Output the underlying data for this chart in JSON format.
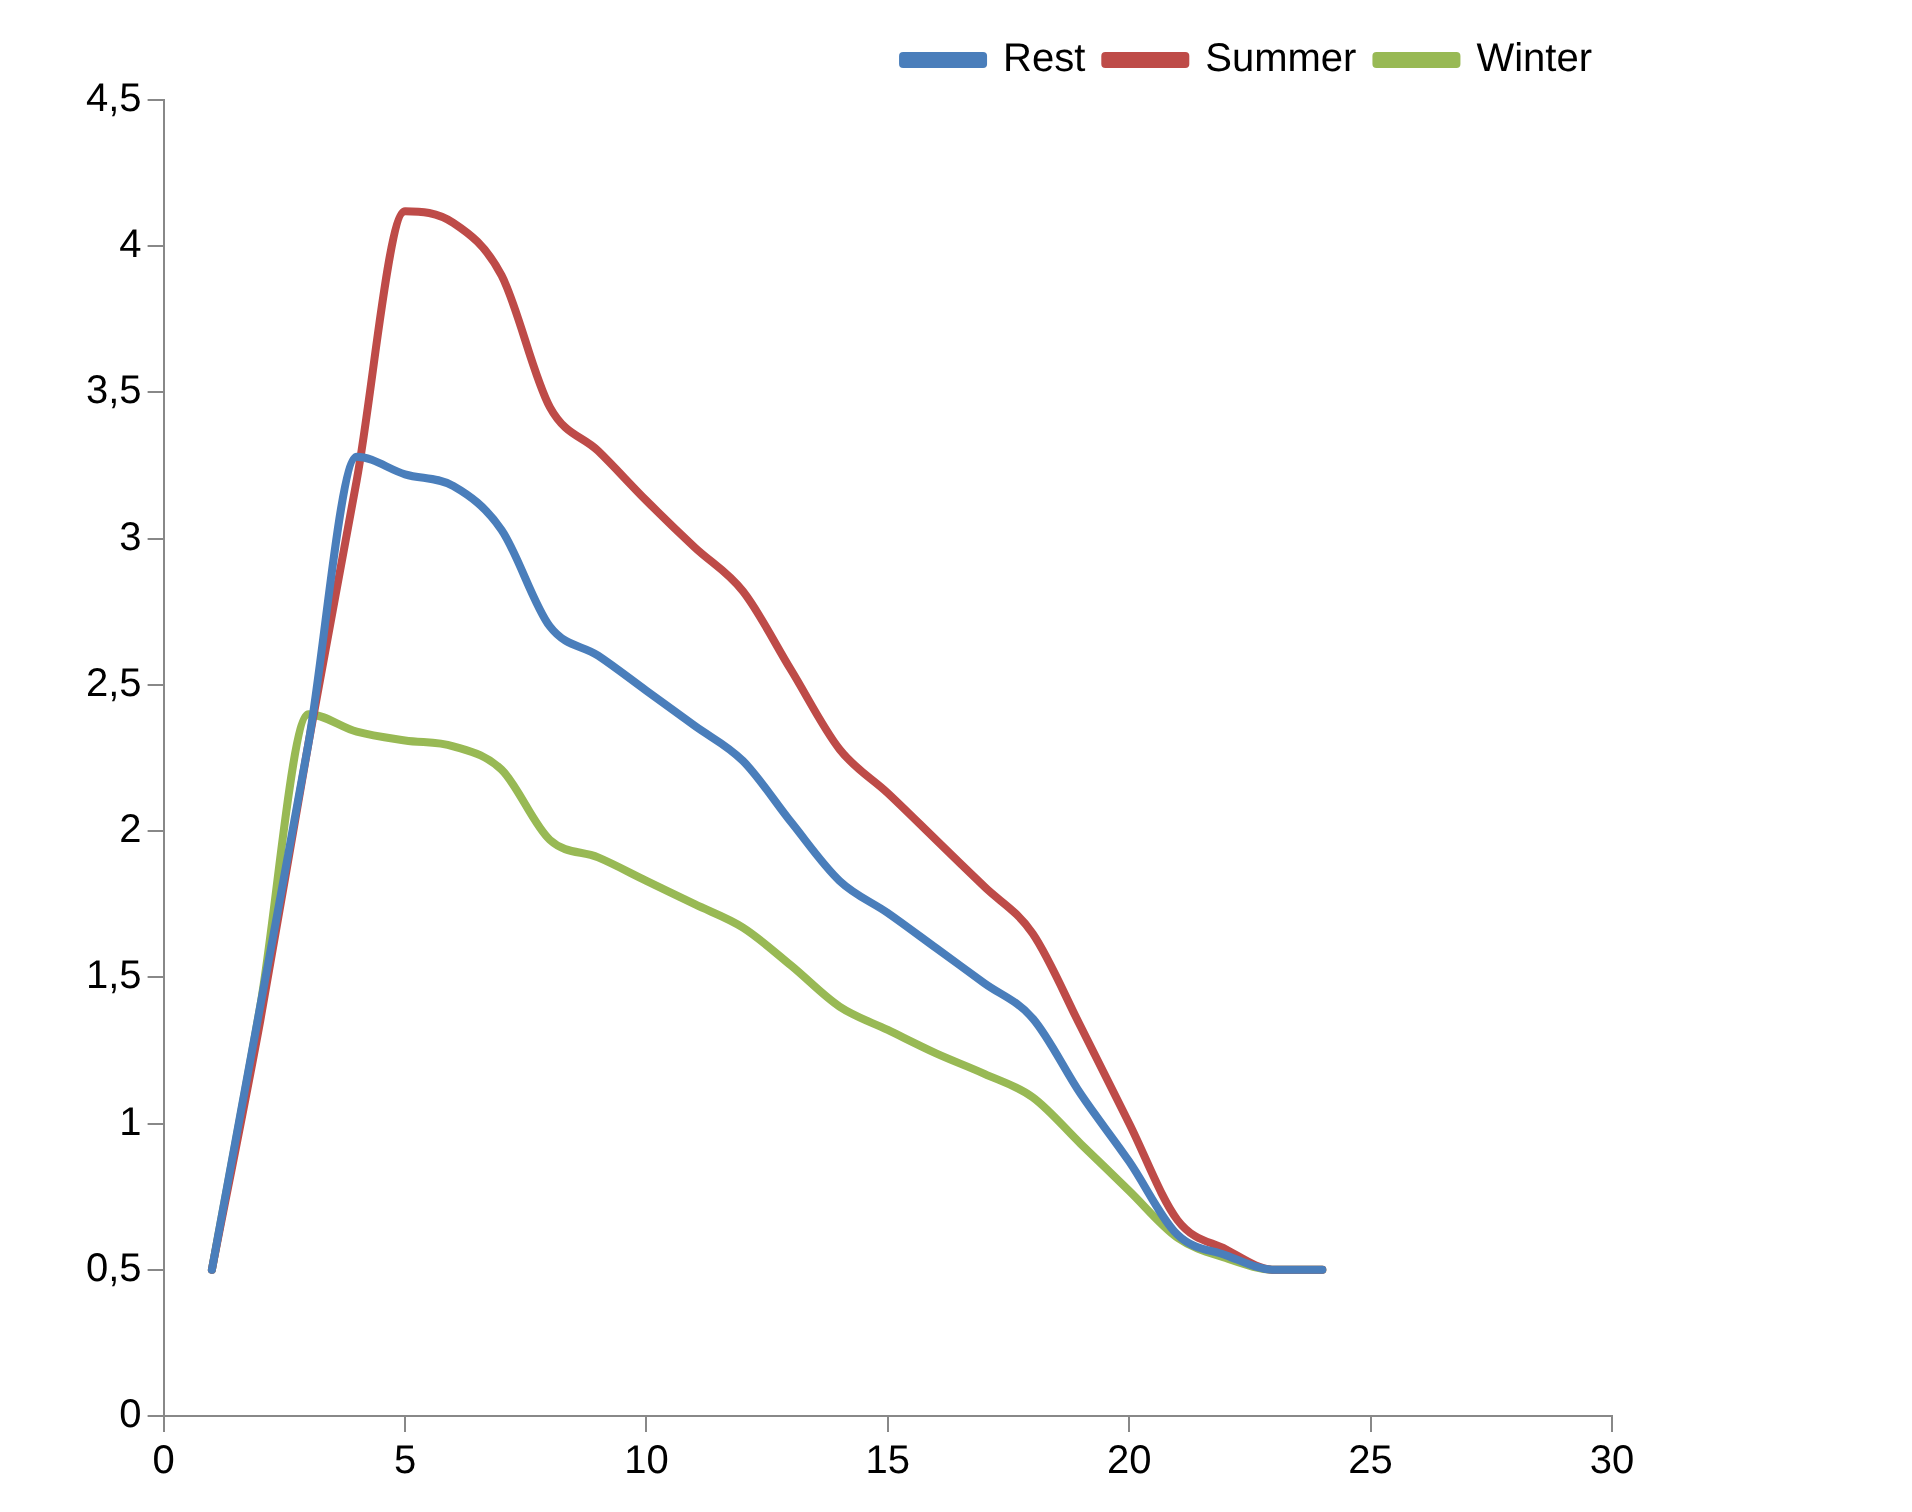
{
  "chart_data": {
    "type": "line",
    "x": [
      1,
      2,
      3,
      4,
      5,
      6,
      7,
      8,
      9,
      10,
      11,
      12,
      13,
      14,
      15,
      16,
      17,
      18,
      19,
      20,
      21,
      22,
      23,
      24
    ],
    "series": [
      {
        "name": "Rest",
        "color": "#4a7ebb",
        "values": [
          0.5,
          1.4,
          2.3,
          3.28,
          3.22,
          3.18,
          3.03,
          2.7,
          2.6,
          2.48,
          2.36,
          2.24,
          2.03,
          1.83,
          1.72,
          1.6,
          1.48,
          1.36,
          1.1,
          0.87,
          0.62,
          0.55,
          0.5,
          0.5
        ]
      },
      {
        "name": "Summer",
        "color": "#be4b48",
        "values": [
          0.5,
          1.35,
          2.3,
          3.2,
          4.12,
          4.08,
          3.9,
          3.45,
          3.3,
          3.13,
          2.97,
          2.82,
          2.55,
          2.28,
          2.13,
          1.97,
          1.81,
          1.65,
          1.33,
          1.0,
          0.67,
          0.57,
          0.5,
          0.5
        ]
      },
      {
        "name": "Winter",
        "color": "#98b954",
        "values": [
          0.5,
          1.4,
          2.4,
          2.34,
          2.31,
          2.29,
          2.21,
          1.97,
          1.91,
          1.83,
          1.75,
          1.67,
          1.54,
          1.4,
          1.32,
          1.24,
          1.17,
          1.09,
          0.93,
          0.77,
          0.61,
          0.54,
          0.5,
          0.5
        ]
      }
    ],
    "xlim": [
      0,
      30
    ],
    "xticks": [
      0,
      5,
      10,
      15,
      20,
      25,
      30
    ],
    "ylim": [
      0,
      4.5
    ],
    "yticks": [
      0,
      {
        "value": 0.5,
        "label": "0,5"
      },
      1,
      {
        "value": 1.5,
        "label": "1,5"
      },
      2,
      {
        "value": 2.5,
        "label": "2,5"
      },
      3,
      {
        "value": 3.5,
        "label": "3,5"
      },
      4,
      {
        "value": 4.5,
        "label": "4,5"
      }
    ],
    "legend": "top",
    "marker": "none",
    "line_style": "solid",
    "grid": false
  }
}
